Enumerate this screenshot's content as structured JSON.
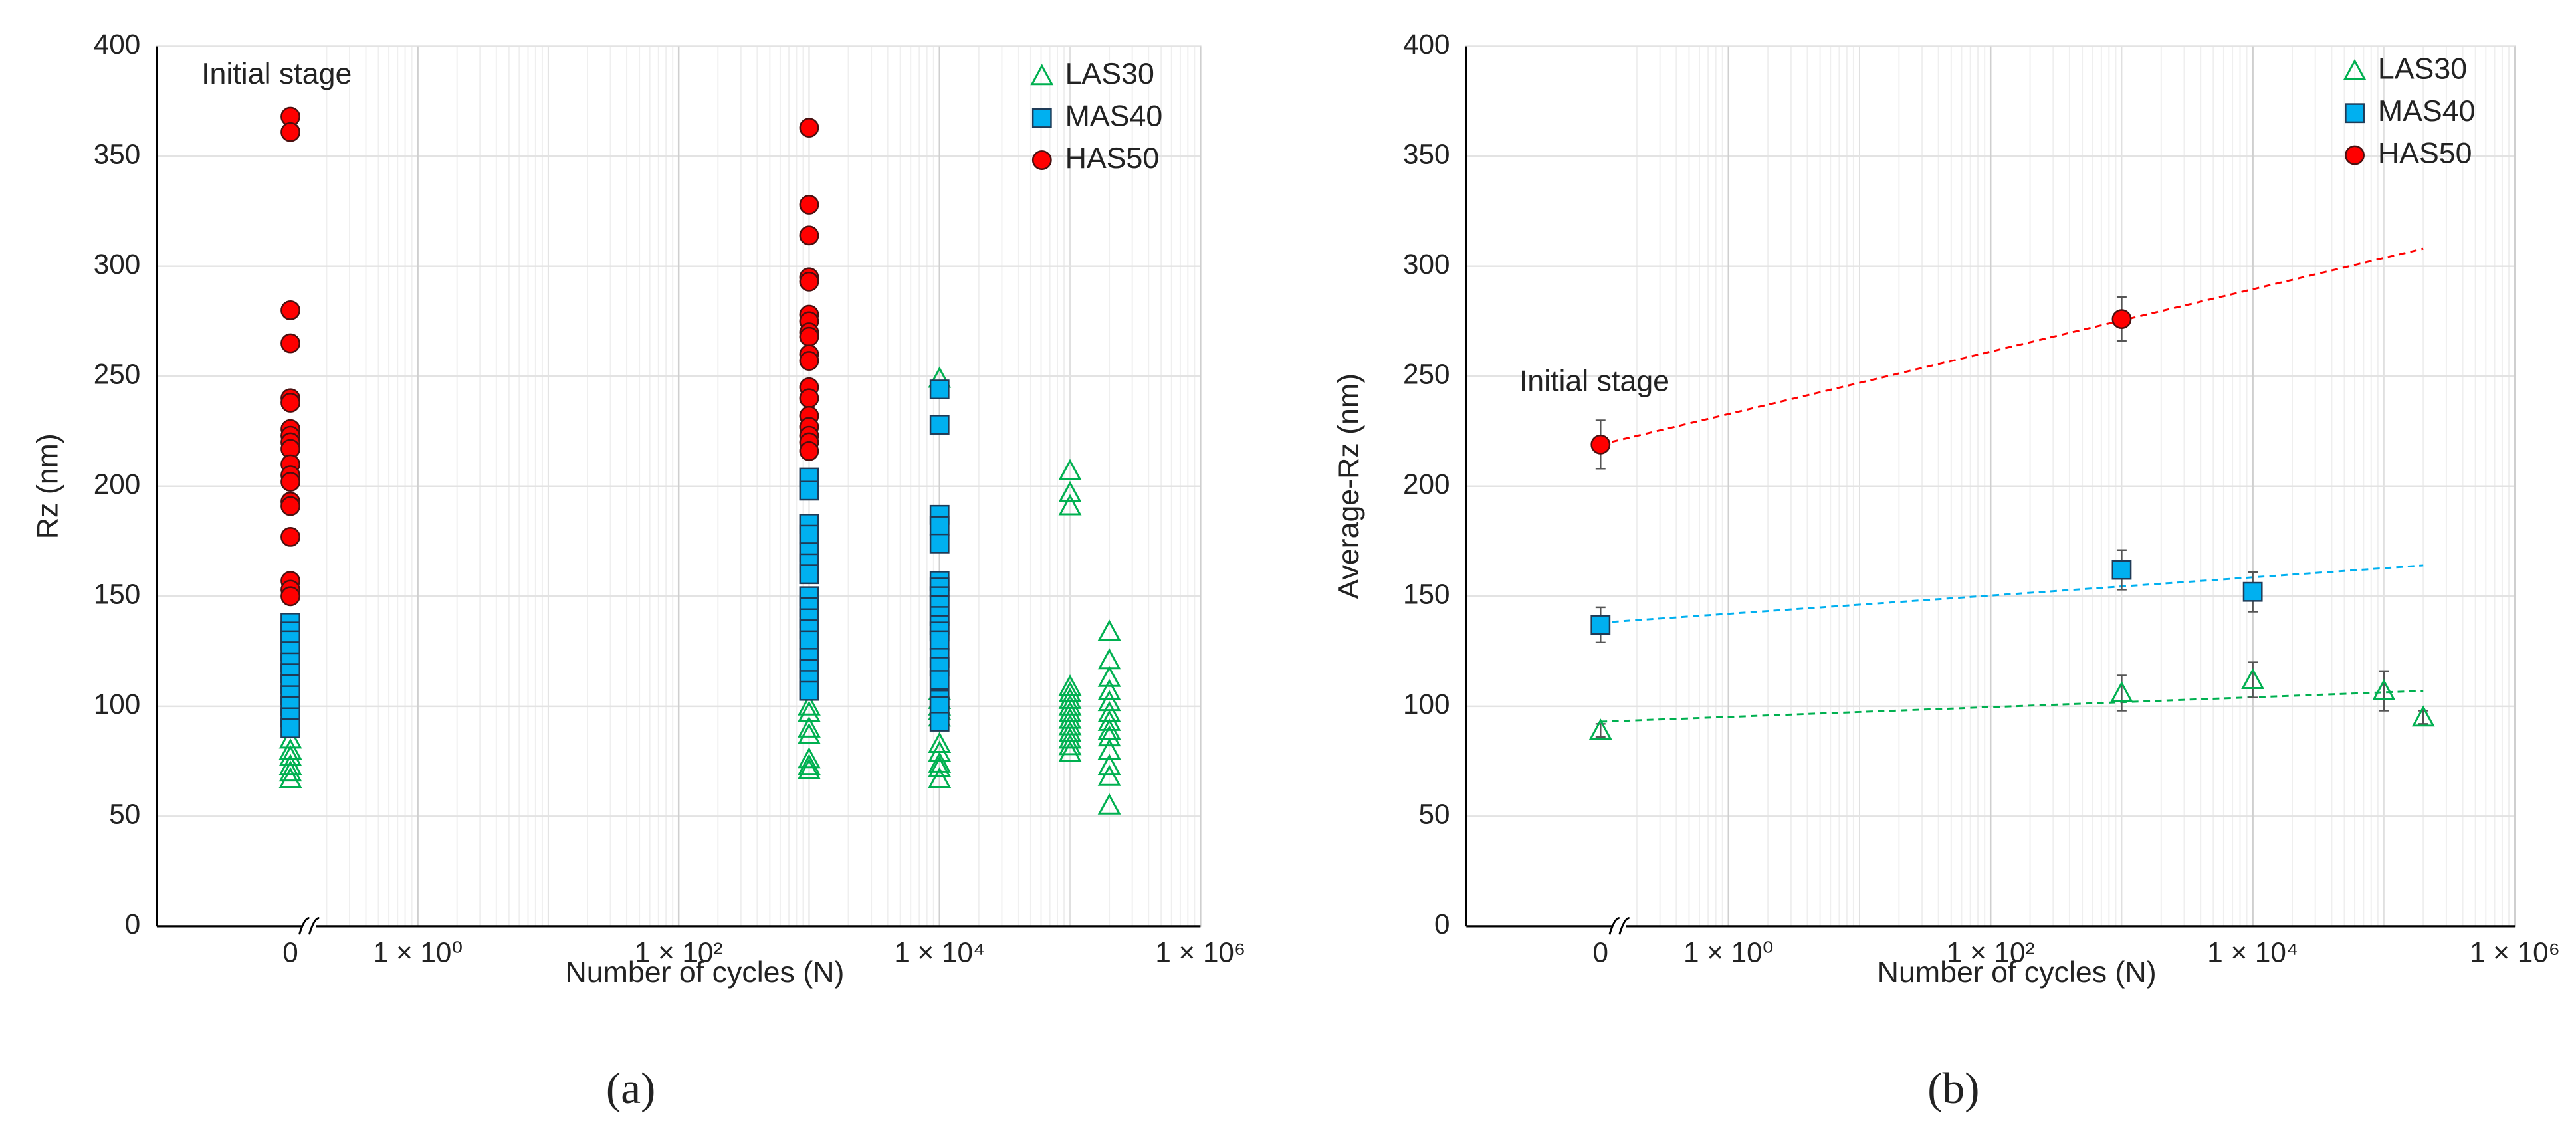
{
  "chart_data": [
    {
      "type": "scatter",
      "caption": "(a)",
      "x_label": "Number of cycles (N)",
      "y_label": "Rz (nm)",
      "annotation": "Initial stage",
      "log_x": true,
      "grid": true,
      "legend": "upper right",
      "xlim": [
        0.01,
        1000000
      ],
      "xticks": [
        0,
        {
          "value": 1,
          "label": "1 × 10⁰"
        },
        {
          "value": 100,
          "label": "1 × 10²"
        },
        {
          "value": 10000,
          "label": "1 × 10⁴"
        },
        {
          "value": 1000000,
          "label": "1 × 10⁶"
        }
      ],
      "ylim": [
        0,
        400
      ],
      "yticks": [
        0,
        50,
        100,
        150,
        200,
        250,
        300,
        350,
        400
      ],
      "series": [
        {
          "name": "LAS30",
          "color": "#00b050",
          "marker": "triangle",
          "x": [
            0,
            0,
            0,
            0,
            0,
            0,
            1000,
            1000,
            1000,
            1000,
            1000,
            1000,
            1000,
            10000,
            10000,
            10000,
            10000,
            10000,
            10000,
            10000,
            10000,
            10000,
            10000,
            10000,
            100000,
            100000,
            100000,
            100000,
            100000,
            100000,
            100000,
            100000,
            100000,
            100000,
            100000,
            100000,
            100000,
            100000,
            200000,
            200000,
            200000,
            200000,
            200000,
            200000,
            200000,
            200000,
            200000,
            200000,
            200000,
            200000,
            200000
          ],
          "values": [
            85,
            80,
            77,
            73,
            70,
            67,
            100,
            97,
            90,
            87,
            76,
            73,
            71,
            249,
            107,
            103,
            100,
            98,
            95,
            83,
            79,
            74,
            72,
            67,
            207,
            197,
            191,
            109,
            106,
            103,
            100,
            97,
            94,
            91,
            88,
            85,
            82,
            79,
            134,
            121,
            113,
            107,
            102,
            97,
            93,
            89,
            86,
            80,
            73,
            68,
            55
          ]
        },
        {
          "name": "MAS40",
          "color": "#00b0f0",
          "marker": "square",
          "x": [
            0,
            0,
            0,
            0,
            0,
            0,
            0,
            0,
            0,
            0,
            0,
            1000,
            1000,
            1000,
            1000,
            1000,
            1000,
            1000,
            1000,
            1000,
            1000,
            1000,
            1000,
            1000,
            1000,
            1000,
            1000,
            10000,
            10000,
            10000,
            10000,
            10000,
            10000,
            10000,
            10000,
            10000,
            10000,
            10000,
            10000,
            10000,
            10000,
            10000,
            10000,
            10000,
            10000,
            10000
          ],
          "values": [
            138,
            134,
            130,
            125,
            120,
            115,
            110,
            105,
            100,
            95,
            90,
            204,
            198,
            183,
            178,
            170,
            165,
            160,
            150,
            145,
            140,
            135,
            130,
            122,
            117,
            112,
            107,
            244,
            228,
            187,
            182,
            174,
            157,
            154,
            150,
            146,
            141,
            137,
            134,
            130,
            122,
            118,
            112,
            103,
            100,
            93
          ]
        },
        {
          "name": "HAS50",
          "color": "#ff0000",
          "marker": "circle",
          "x": [
            0,
            0,
            0,
            0,
            0,
            0,
            0,
            0,
            0,
            0,
            0,
            0,
            0,
            0,
            0,
            0,
            0,
            0,
            0,
            1000,
            1000,
            1000,
            1000,
            1000,
            1000,
            1000,
            1000,
            1000,
            1000,
            1000,
            1000,
            1000,
            1000,
            1000,
            1000,
            1000,
            1000
          ],
          "values": [
            368,
            361,
            280,
            265,
            240,
            238,
            226,
            223,
            220,
            217,
            210,
            205,
            202,
            193,
            191,
            177,
            157,
            153,
            150,
            363,
            328,
            314,
            295,
            293,
            278,
            275,
            270,
            268,
            260,
            257,
            245,
            240,
            232,
            227,
            223,
            220,
            216
          ]
        }
      ]
    },
    {
      "type": "scatter",
      "caption": "(b)",
      "x_label": "Number of cycles (N)",
      "y_label": "Average-Rz (nm)",
      "annotation": "Initial stage",
      "log_x": true,
      "grid": true,
      "legend": "upper right",
      "xlim": [
        0.01,
        1000000
      ],
      "xticks": [
        0,
        {
          "value": 1,
          "label": "1 × 10⁰"
        },
        {
          "value": 100,
          "label": "1 × 10²"
        },
        {
          "value": 10000,
          "label": "1 × 10⁴"
        },
        {
          "value": 1000000,
          "label": "1 × 10⁶"
        }
      ],
      "ylim": [
        0,
        400
      ],
      "yticks": [
        0,
        50,
        100,
        150,
        200,
        250,
        300,
        350,
        400
      ],
      "trend_x": [
        0,
        200000
      ],
      "series": [
        {
          "name": "LAS30",
          "color": "#00b050",
          "marker": "triangle",
          "x": [
            0,
            1000,
            10000,
            100000,
            200000
          ],
          "values": [
            89,
            106,
            112,
            107,
            95
          ],
          "errors": [
            3,
            8,
            8,
            9,
            3
          ],
          "trend": [
            93,
            107
          ]
        },
        {
          "name": "MAS40",
          "color": "#00b0f0",
          "marker": "square",
          "x": [
            0,
            1000,
            10000
          ],
          "values": [
            137,
            162,
            152
          ],
          "errors": [
            8,
            9,
            9
          ],
          "trend": [
            138,
            164
          ]
        },
        {
          "name": "HAS50",
          "color": "#ff0000",
          "marker": "circle",
          "x": [
            0,
            1000
          ],
          "values": [
            219,
            276
          ],
          "errors": [
            11,
            10
          ],
          "trend": [
            219,
            308
          ]
        }
      ]
    }
  ]
}
